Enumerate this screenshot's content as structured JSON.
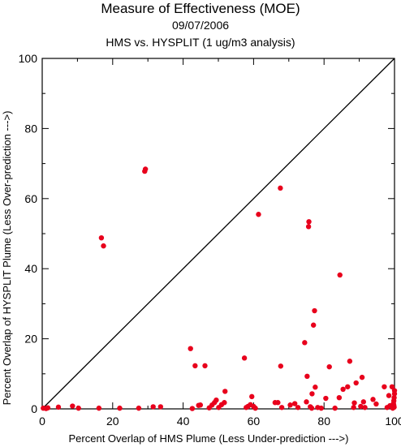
{
  "chart_data": {
    "type": "scatter",
    "title": "Measure of Effectiveness (MOE)",
    "subtitle_lines": [
      "09/07/2006",
      "HMS vs. HYSPLIT  (1 ug/m3 analysis)"
    ],
    "xlabel": "Percent Overlap of HMS Plume (Less Under-prediction --->)",
    "ylabel": "Percent Overlap of HYSPLIT Plume (Less Over-prediction --->)",
    "xlim": [
      0,
      100
    ],
    "ylim": [
      0,
      100
    ],
    "x_ticks": [
      "0",
      "20",
      "40",
      "60",
      "80",
      "100"
    ],
    "y_ticks": [
      "0",
      "20",
      "40",
      "60",
      "80",
      "100"
    ],
    "reference_line": "y = x",
    "marker_color": "#e8001c",
    "points": [
      [
        0.3,
        0.2
      ],
      [
        1.1,
        0.1
      ],
      [
        1.6,
        0.3
      ],
      [
        4.6,
        0.5
      ],
      [
        8.6,
        0.8
      ],
      [
        10.3,
        0.2
      ],
      [
        16.1,
        0.2
      ],
      [
        16.8,
        48.8
      ],
      [
        17.4,
        46.5
      ],
      [
        22.0,
        0.2
      ],
      [
        27.4,
        0.2
      ],
      [
        29.1,
        67.8
      ],
      [
        29.3,
        68.4
      ],
      [
        31.5,
        0.6
      ],
      [
        33.6,
        0.6
      ],
      [
        42.1,
        17.2
      ],
      [
        42.6,
        0.1
      ],
      [
        43.4,
        12.3
      ],
      [
        44.4,
        1.0
      ],
      [
        44.9,
        1.1
      ],
      [
        46.2,
        12.3
      ],
      [
        47.4,
        0.3
      ],
      [
        48.2,
        1.1
      ],
      [
        48.9,
        1.8
      ],
      [
        49.4,
        2.5
      ],
      [
        50.1,
        0.4
      ],
      [
        50.9,
        1.2
      ],
      [
        51.7,
        1.8
      ],
      [
        51.9,
        5.0
      ],
      [
        57.4,
        14.5
      ],
      [
        57.9,
        0.4
      ],
      [
        58.4,
        0.7
      ],
      [
        59.1,
        1.2
      ],
      [
        59.5,
        3.5
      ],
      [
        60.0,
        0.7
      ],
      [
        60.5,
        0.2
      ],
      [
        61.4,
        55.5
      ],
      [
        66.1,
        1.8
      ],
      [
        66.9,
        1.8
      ],
      [
        67.6,
        63.0
      ],
      [
        67.7,
        12.2
      ],
      [
        68.0,
        0.4
      ],
      [
        70.4,
        1.1
      ],
      [
        71.7,
        1.5
      ],
      [
        72.6,
        0.4
      ],
      [
        74.5,
        18.9
      ],
      [
        75.0,
        2.0
      ],
      [
        75.2,
        9.3
      ],
      [
        75.6,
        52.0
      ],
      [
        75.7,
        53.4
      ],
      [
        76.1,
        0.6
      ],
      [
        76.5,
        0.2
      ],
      [
        76.6,
        4.3
      ],
      [
        77.0,
        23.9
      ],
      [
        77.3,
        28.0
      ],
      [
        77.5,
        6.2
      ],
      [
        78.2,
        0.4
      ],
      [
        79.2,
        0.2
      ],
      [
        80.5,
        3.0
      ],
      [
        81.5,
        12.0
      ],
      [
        83.1,
        0.2
      ],
      [
        84.3,
        3.2
      ],
      [
        84.5,
        38.2
      ],
      [
        85.4,
        5.6
      ],
      [
        86.7,
        6.3
      ],
      [
        87.3,
        13.6
      ],
      [
        88.4,
        0.4
      ],
      [
        88.6,
        1.7
      ],
      [
        89.1,
        7.4
      ],
      [
        90.4,
        0.7
      ],
      [
        90.8,
        9.0
      ],
      [
        91.2,
        2.0
      ],
      [
        91.6,
        0.4
      ],
      [
        93.9,
        2.7
      ],
      [
        94.8,
        1.4
      ],
      [
        97.1,
        6.3
      ],
      [
        97.9,
        0.4
      ],
      [
        98.4,
        3.8
      ],
      [
        98.7,
        0.9
      ],
      [
        99.3,
        6.3
      ],
      [
        99.5,
        0.2
      ],
      [
        99.6,
        0.8
      ],
      [
        99.7,
        1.5
      ],
      [
        99.8,
        2.3
      ],
      [
        99.9,
        3.2
      ],
      [
        100.0,
        4.3
      ],
      [
        100.0,
        5.2
      ],
      [
        99.9,
        0.5
      ],
      [
        99.8,
        1.0
      ]
    ]
  }
}
